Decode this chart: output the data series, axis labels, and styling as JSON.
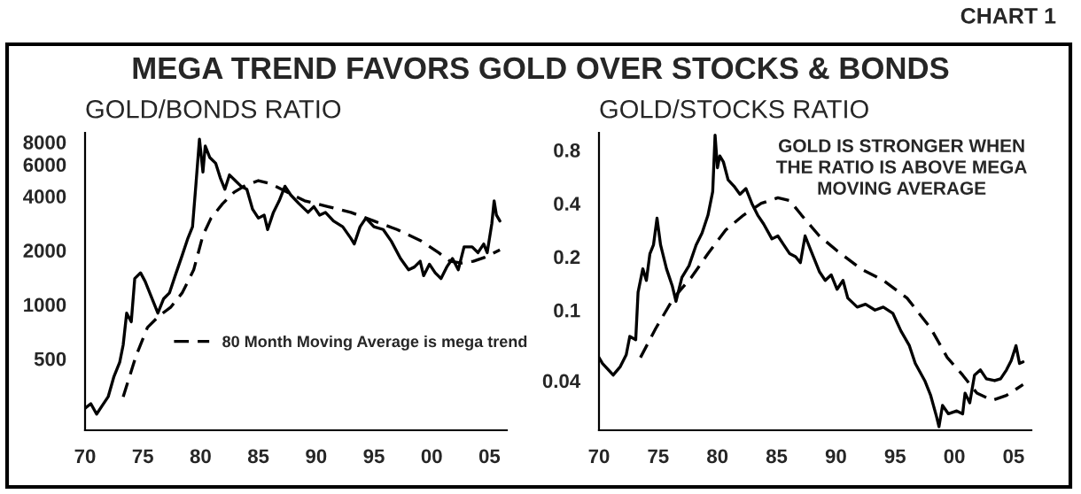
{
  "chart_data": [
    {
      "type": "line",
      "title": "GOLD/BONDS RATIO",
      "log": "y",
      "grid": false,
      "legend": "bottom",
      "annotations": [
        "CHART 1",
        "MEGA TREND FAVORS GOLD OVER STOCKS & BONDS"
      ],
      "xlim": [
        1970,
        2006.5
      ],
      "ylim": [
        200,
        9000
      ],
      "xticks": [
        {
          "value": 1970,
          "label": "70"
        },
        {
          "value": 1975,
          "label": "75"
        },
        {
          "value": 1980,
          "label": "80"
        },
        {
          "value": 1985,
          "label": "85"
        },
        {
          "value": 1990,
          "label": "90"
        },
        {
          "value": 1995,
          "label": "95"
        },
        {
          "value": 2000,
          "label": "00"
        },
        {
          "value": 2005,
          "label": "05"
        }
      ],
      "yticks": [
        500,
        1000,
        2000,
        4000,
        6000,
        8000
      ],
      "series": [
        {
          "color": "#000000",
          "line_style": "solid",
          "x": [
            1970.0,
            1970.5,
            1971.0,
            1971.5,
            1972.0,
            1972.5,
            1973.0,
            1973.3,
            1973.6,
            1974.0,
            1974.3,
            1974.8,
            1975.2,
            1975.8,
            1976.3,
            1976.8,
            1977.3,
            1977.8,
            1978.4,
            1978.9,
            1979.3,
            1979.6,
            1979.9,
            1980.2,
            1980.4,
            1980.8,
            1981.3,
            1981.7,
            1982.1,
            1982.5,
            1983.0,
            1983.5,
            1984.0,
            1984.5,
            1985.0,
            1985.5,
            1985.8,
            1986.3,
            1986.8,
            1987.3,
            1987.8,
            1988.5,
            1989.3,
            1989.8,
            1990.3,
            1990.8,
            1991.5,
            1992.3,
            1993.0,
            1993.3,
            1993.8,
            1994.3,
            1995.0,
            1995.8,
            1996.5,
            1997.3,
            1998.0,
            1998.5,
            1999.0,
            1999.3,
            1999.8,
            2000.3,
            2000.8,
            2001.3,
            2001.8,
            2002.3,
            2002.8,
            2003.5,
            2004.0,
            2004.5,
            2004.8,
            2005.2,
            2005.4,
            2005.6,
            2005.9
          ],
          "values": [
            265,
            281,
            246,
            275,
            307,
            398,
            478,
            597,
            895,
            802,
            1393,
            1500,
            1343,
            1076,
            895,
            1076,
            1159,
            1446,
            1872,
            2335,
            2705,
            4700,
            8300,
            5450,
            7600,
            6550,
            6100,
            5060,
            4370,
            5250,
            4880,
            4540,
            4370,
            3380,
            3020,
            3140,
            2610,
            3250,
            3770,
            4540,
            4060,
            3640,
            3250,
            3500,
            3140,
            3250,
            2910,
            2705,
            2335,
            2170,
            2705,
            3020,
            2705,
            2610,
            2250,
            1800,
            1560,
            1615,
            1740,
            1446,
            1675,
            1500,
            1393,
            1615,
            1800,
            1560,
            2090,
            2090,
            1940,
            2170,
            1940,
            2810,
            3770,
            3140,
            2910
          ]
        },
        {
          "name": "80 Month Moving Average is mega trend",
          "color": "#000000",
          "line_style": "dashed",
          "x": [
            1973.3,
            1974.4,
            1975.4,
            1976.4,
            1977.4,
            1978.4,
            1979.4,
            1980.2,
            1980.9,
            1981.9,
            1982.9,
            1983.9,
            1985.0,
            1986.0,
            1987.0,
            1989.0,
            1991.0,
            1993.0,
            1995.0,
            1997.0,
            1999.1,
            2000.6,
            2001.6,
            2002.6,
            2003.6,
            2004.6,
            2005.9
          ],
          "values": [
            307,
            515,
            745,
            863,
            964,
            1159,
            1557,
            2420,
            3020,
            3630,
            4210,
            4600,
            4880,
            4700,
            4370,
            3770,
            3500,
            3250,
            2910,
            2610,
            2250,
            1940,
            1740,
            1700,
            1740,
            1830,
            2010
          ]
        }
      ]
    },
    {
      "type": "line",
      "title": "GOLD/STOCKS RATIO",
      "log": "y",
      "grid": false,
      "annotations": [
        "GOLD IS STRONGER WHEN\nTHE RATIO IS ABOVE MEGA\nMOVING AVERAGE"
      ],
      "xlim": [
        1970,
        2006.5
      ],
      "ylim": [
        0.021,
        1.0
      ],
      "xticks": [
        {
          "value": 1970,
          "label": "70"
        },
        {
          "value": 1975,
          "label": "75"
        },
        {
          "value": 1980,
          "label": "80"
        },
        {
          "value": 1985,
          "label": "85"
        },
        {
          "value": 1990,
          "label": "90"
        },
        {
          "value": 1995,
          "label": "95"
        },
        {
          "value": 2000,
          "label": "00"
        },
        {
          "value": 2005,
          "label": "05"
        }
      ],
      "yticks": [
        0.04,
        0.1,
        0.2,
        0.4,
        0.8
      ],
      "series": [
        {
          "color": "#000000",
          "line_style": "solid",
          "x": [
            1970.0,
            1970.3,
            1971.2,
            1971.8,
            1972.3,
            1972.6,
            1973.1,
            1973.3,
            1973.7,
            1974.0,
            1974.3,
            1974.6,
            1974.9,
            1975.2,
            1975.7,
            1976.2,
            1976.5,
            1977.0,
            1977.6,
            1978.2,
            1978.7,
            1979.2,
            1979.6,
            1979.8,
            1980.0,
            1980.2,
            1980.5,
            1980.9,
            1981.4,
            1981.9,
            1982.4,
            1982.9,
            1983.4,
            1983.9,
            1984.6,
            1985.1,
            1985.6,
            1986.1,
            1986.6,
            1987.0,
            1987.4,
            1987.9,
            1988.6,
            1989.1,
            1989.6,
            1990.1,
            1990.6,
            1991.0,
            1991.8,
            1992.5,
            1993.3,
            1994.0,
            1994.8,
            1995.5,
            1996.2,
            1996.7,
            1997.5,
            1998.0,
            1998.5,
            1998.7,
            1999.0,
            1999.5,
            2000.2,
            2000.7,
            2000.9,
            2001.3,
            2001.7,
            2002.2,
            2002.7,
            2003.4,
            2003.9,
            2004.4,
            2004.8,
            2005.2,
            2005.5,
            2005.8
          ],
          "values": [
            0.054,
            0.05,
            0.043,
            0.048,
            0.056,
            0.071,
            0.068,
            0.126,
            0.171,
            0.147,
            0.208,
            0.233,
            0.33,
            0.233,
            0.171,
            0.136,
            0.112,
            0.153,
            0.178,
            0.233,
            0.272,
            0.343,
            0.466,
            0.97,
            0.635,
            0.74,
            0.686,
            0.543,
            0.5,
            0.45,
            0.485,
            0.4,
            0.343,
            0.306,
            0.252,
            0.262,
            0.233,
            0.208,
            0.2,
            0.185,
            0.262,
            0.216,
            0.165,
            0.147,
            0.158,
            0.131,
            0.147,
            0.117,
            0.104,
            0.108,
            0.1,
            0.104,
            0.096,
            0.076,
            0.063,
            0.05,
            0.04,
            0.033,
            0.025,
            0.022,
            0.029,
            0.026,
            0.027,
            0.026,
            0.034,
            0.03,
            0.043,
            0.046,
            0.041,
            0.04,
            0.041,
            0.046,
            0.052,
            0.063,
            0.05,
            0.051
          ]
        },
        {
          "color": "#000000",
          "line_style": "dashed",
          "x": [
            1973.5,
            1974.8,
            1976.3,
            1977.8,
            1979.2,
            1980.7,
            1982.2,
            1983.7,
            1985.1,
            1986.1,
            1987.1,
            1988.6,
            1990.1,
            1992.1,
            1994.0,
            1996.0,
            1998.0,
            1999.4,
            2000.7,
            2001.9,
            2003.2,
            2004.4,
            2005.8
          ],
          "values": [
            0.054,
            0.079,
            0.117,
            0.153,
            0.208,
            0.283,
            0.343,
            0.4,
            0.43,
            0.415,
            0.343,
            0.262,
            0.216,
            0.171,
            0.147,
            0.117,
            0.079,
            0.054,
            0.043,
            0.034,
            0.031,
            0.033,
            0.038
          ]
        }
      ]
    }
  ]
}
